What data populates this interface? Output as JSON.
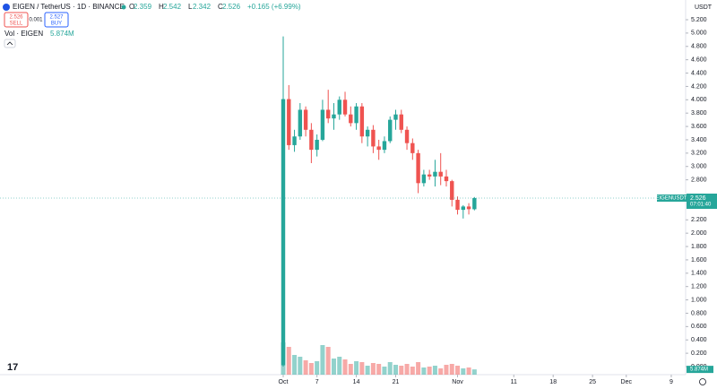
{
  "chart_data": {
    "type": "candlestick",
    "title": "EIGEN / TetherUS · 1D · BINANCE",
    "currency": "USDT",
    "ohlc_legend": [
      {
        "label": "O",
        "value": "2.359"
      },
      {
        "label": "H",
        "value": "2.542"
      },
      {
        "label": "L",
        "value": "2.342"
      },
      {
        "label": "C",
        "value": "2.526"
      }
    ],
    "change": "+0.165 (+6.99%)",
    "sell": {
      "price": "2.526",
      "label": "SELL"
    },
    "spread": "0.001",
    "buy": {
      "price": "2.527",
      "label": "BUY"
    },
    "volume_legend": {
      "label": "Vol · EIGEN",
      "value": "5.874M"
    },
    "up_color": "#26a69a",
    "down_color": "#ef5350",
    "x": [
      "Oct 1",
      "Oct 2",
      "Oct 3",
      "Oct 4",
      "Oct 5",
      "Oct 6",
      "Oct 7",
      "Oct 8",
      "Oct 9",
      "Oct 10",
      "Oct 11",
      "Oct 12",
      "Oct 13",
      "Oct 14",
      "Oct 15",
      "Oct 16",
      "Oct 17",
      "Oct 18",
      "Oct 19",
      "Oct 20",
      "Oct 21",
      "Oct 22",
      "Oct 23",
      "Oct 24",
      "Oct 25",
      "Oct 26",
      "Oct 27",
      "Oct 28",
      "Oct 29",
      "Oct 30",
      "Oct 31",
      "Nov 1",
      "Nov 2",
      "Nov 3",
      "Nov 4"
    ],
    "open": [
      0.02,
      4.01,
      3.32,
      3.45,
      3.85,
      3.55,
      3.25,
      3.4,
      3.85,
      3.72,
      3.78,
      4.0,
      3.78,
      3.65,
      3.9,
      3.45,
      3.55,
      3.3,
      3.25,
      3.38,
      3.7,
      3.78,
      3.55,
      3.35,
      3.2,
      2.75,
      2.88,
      2.85,
      2.92,
      2.85,
      2.78,
      2.5,
      2.35,
      2.4,
      2.359
    ],
    "high": [
      4.95,
      4.22,
      3.55,
      3.95,
      3.9,
      3.65,
      3.48,
      4.0,
      4.15,
      3.95,
      4.05,
      4.12,
      3.9,
      3.95,
      3.95,
      3.6,
      3.62,
      3.4,
      3.45,
      3.75,
      3.85,
      3.85,
      3.6,
      3.42,
      3.25,
      2.95,
      2.95,
      3.1,
      3.2,
      2.95,
      2.8,
      2.55,
      2.42,
      2.45,
      2.542
    ],
    "low": [
      0.0,
      3.25,
      3.22,
      3.4,
      3.45,
      3.05,
      3.15,
      3.38,
      3.65,
      3.55,
      3.7,
      3.75,
      3.6,
      3.55,
      3.35,
      3.3,
      3.2,
      3.1,
      3.2,
      3.35,
      3.55,
      3.5,
      3.25,
      3.1,
      2.6,
      2.7,
      2.8,
      2.7,
      2.72,
      2.7,
      2.4,
      2.28,
      2.22,
      2.28,
      2.342
    ],
    "close": [
      4.01,
      3.32,
      3.45,
      3.85,
      3.55,
      3.25,
      3.4,
      3.85,
      3.72,
      3.78,
      4.0,
      3.78,
      3.65,
      3.9,
      3.45,
      3.55,
      3.3,
      3.25,
      3.38,
      3.7,
      3.78,
      3.55,
      3.35,
      3.2,
      2.75,
      2.88,
      2.85,
      2.92,
      2.85,
      2.78,
      2.5,
      2.35,
      2.4,
      2.36,
      2.526
    ],
    "volume": [
      36,
      31,
      22,
      20,
      16,
      13,
      15,
      33,
      31,
      18,
      20,
      17,
      12,
      15,
      14,
      10,
      13,
      12,
      9,
      14,
      11,
      10,
      12,
      9,
      14,
      8,
      9,
      10,
      7,
      11,
      12,
      10,
      7,
      8,
      5.874
    ],
    "volume_ylim": [
      0,
      40
    ],
    "ylim": [
      0,
      5.2
    ],
    "yticks": [
      {
        "value": 5.2,
        "label": "5.200"
      },
      {
        "value": 5.0,
        "label": "5.000"
      },
      {
        "value": 4.8,
        "label": "4.800"
      },
      {
        "value": 4.6,
        "label": "4.600"
      },
      {
        "value": 4.4,
        "label": "4.400"
      },
      {
        "value": 4.2,
        "label": "4.200"
      },
      {
        "value": 4.0,
        "label": "4.000"
      },
      {
        "value": 3.8,
        "label": "3.800"
      },
      {
        "value": 3.6,
        "label": "3.600"
      },
      {
        "value": 3.4,
        "label": "3.400"
      },
      {
        "value": 3.2,
        "label": "3.200"
      },
      {
        "value": 3.0,
        "label": "3.000"
      },
      {
        "value": 2.8,
        "label": "2.800"
      },
      {
        "value": 2.2,
        "label": "2.200"
      },
      {
        "value": 2.0,
        "label": "2.000"
      },
      {
        "value": 1.8,
        "label": "1.800"
      },
      {
        "value": 1.6,
        "label": "1.600"
      },
      {
        "value": 1.4,
        "label": "1.400"
      },
      {
        "value": 1.2,
        "label": "1.200"
      },
      {
        "value": 1.0,
        "label": "1.000"
      },
      {
        "value": 0.8,
        "label": "0.800"
      },
      {
        "value": 0.6,
        "label": "0.600"
      },
      {
        "value": 0.4,
        "label": "0.400"
      },
      {
        "value": 0.2,
        "label": "0.200"
      },
      {
        "value": 0.0,
        "label": "0.000"
      }
    ],
    "xticks": [
      {
        "value": "Oct 1",
        "label": "Oct"
      },
      {
        "value": "Oct 7",
        "label": "7"
      },
      {
        "value": "Oct 14",
        "label": "14"
      },
      {
        "value": "Oct 21",
        "label": "21"
      },
      {
        "value": "Nov 1",
        "label": "Nov"
      },
      {
        "value": "Nov 11",
        "label": "11"
      },
      {
        "value": "Nov 18",
        "label": "18"
      },
      {
        "value": "Nov 25",
        "label": "25"
      },
      {
        "value": "Dec 1",
        "label": "Dec"
      },
      {
        "value": "Dec 9",
        "label": "9"
      }
    ],
    "price_label": {
      "symbol": "EIGENUSDT",
      "value": 2.526,
      "text": "2.526",
      "countdown": "07:01:40"
    }
  }
}
